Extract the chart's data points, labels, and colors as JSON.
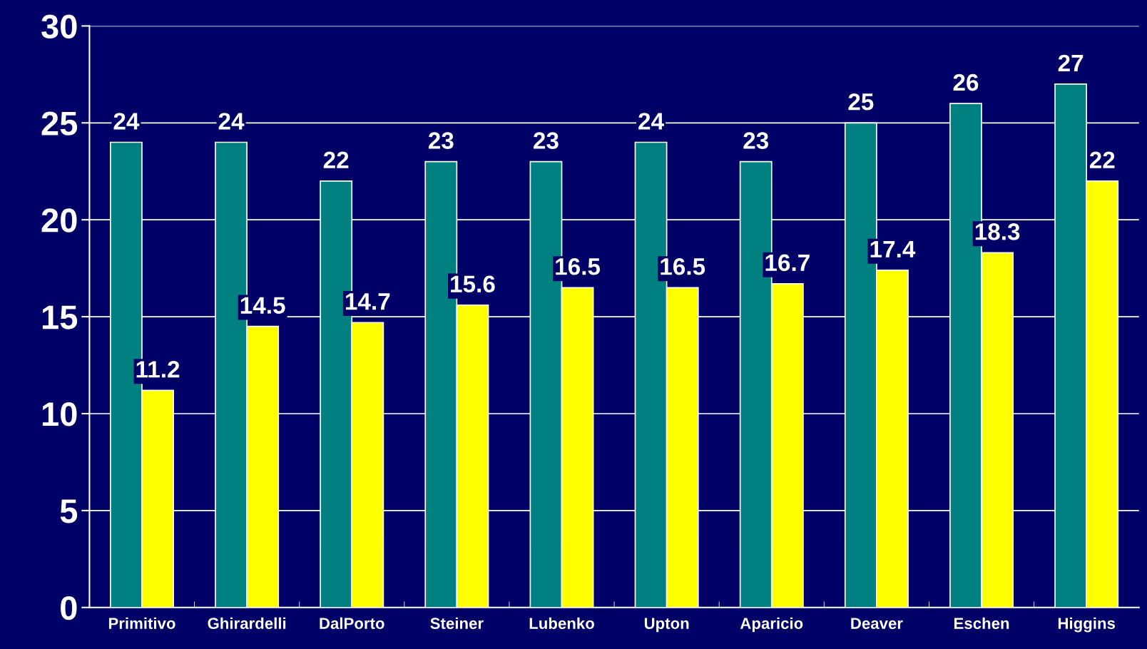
{
  "chart_data": {
    "type": "bar",
    "categories": [
      "Primitivo",
      "Ghirardelli",
      "DalPorto",
      "Steiner",
      "Lubenko",
      "Upton",
      "Aparicio",
      "Deaver",
      "Eschen",
      "Higgins"
    ],
    "series": [
      {
        "color": "#008080",
        "values": [
          24,
          24,
          22,
          23,
          23,
          24,
          23,
          25,
          26,
          27
        ]
      },
      {
        "color": "#ffff00",
        "values": [
          11.2,
          14.5,
          14.7,
          15.6,
          16.5,
          16.5,
          16.7,
          17.4,
          18.3,
          22
        ]
      }
    ],
    "ylim": [
      0,
      30
    ],
    "yticks": [
      0,
      5,
      10,
      15,
      20,
      25,
      30
    ],
    "grid": "y",
    "data_labels": true,
    "legend": false
  }
}
